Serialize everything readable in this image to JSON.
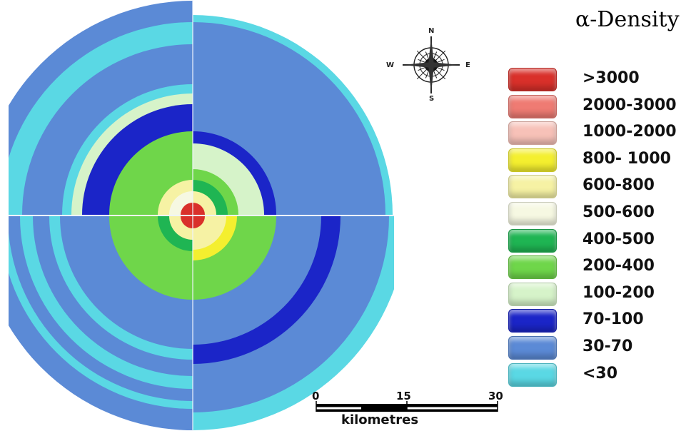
{
  "title": "α-Density",
  "compass": {
    "north": "N",
    "south": "S",
    "east": "E",
    "west": "W"
  },
  "legend": [
    {
      "label": ">3000",
      "color": "#d9302a"
    },
    {
      "label": "2000-3000",
      "color": "#ef7b73"
    },
    {
      "label": "1000-2000",
      "color": "#f7c1b8"
    },
    {
      "label": "800- 1000",
      "color": "#f4ef2f"
    },
    {
      "label": "600-800",
      "color": "#f6f2a4"
    },
    {
      "label": "500-600",
      "color": "#f6f8e2"
    },
    {
      "label": "400-500",
      "color": "#1fb553"
    },
    {
      "label": "200-400",
      "color": "#6fd64a"
    },
    {
      "label": "100-200",
      "color": "#d6f3c9"
    },
    {
      "label": "70-100",
      "color": "#1b25c8"
    },
    {
      "label": "30-70",
      "color": "#5b8ad6"
    },
    {
      "label": "<30",
      "color": "#5ad8e4"
    }
  ],
  "scale_bar": {
    "ticks": [
      "0",
      "15",
      "30"
    ],
    "unit": "kilometres"
  },
  "quadrants": {
    "north_east": [
      "<30",
      "30-70",
      "70-100",
      "100-200",
      "200-400",
      "400-500",
      "600-800",
      ">3000"
    ],
    "north_west": [
      "30-70",
      "<30",
      "30-70",
      "<30",
      "100-200",
      "70-100",
      "200-400",
      "600-800",
      "500-600",
      ">3000"
    ],
    "south_west": [
      "30-70",
      "<30",
      "30-70",
      "<30",
      "30-70",
      "<30",
      "30-70",
      "200-400",
      "400-500",
      "600-800",
      ">3000"
    ],
    "south_east": [
      "<30",
      "30-70",
      "70-100",
      "30-70",
      "200-400",
      "800- 1000",
      "600-800",
      ">3000"
    ]
  }
}
